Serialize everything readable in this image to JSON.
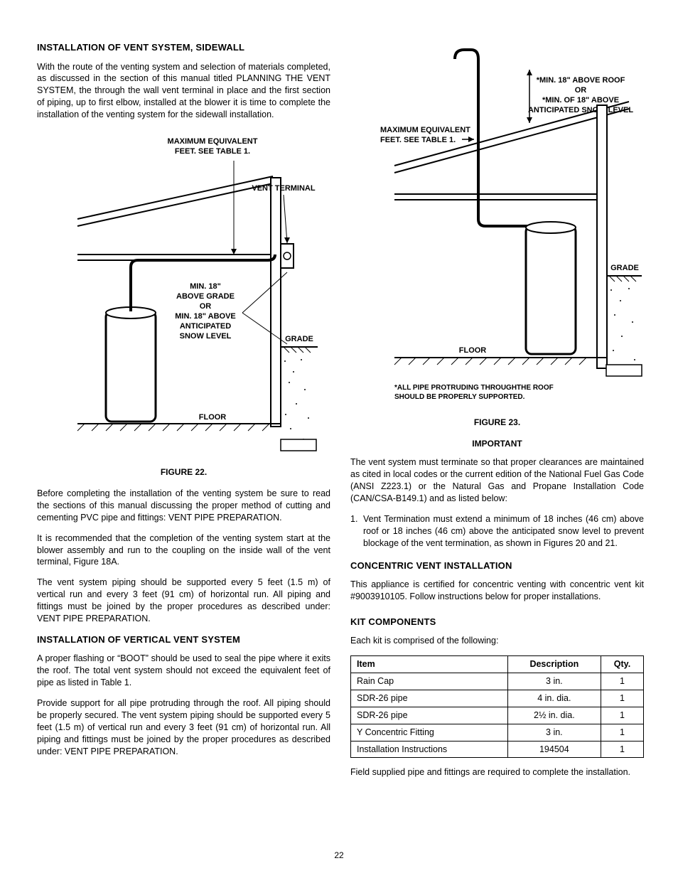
{
  "page_number": "22",
  "left": {
    "h_sidewall": "INSTALLATION OF VENT SYSTEM, SIDEWALL",
    "p_sidewall_1": "With the route of the venting system and selection of materials completed, as discussed in the section of this manual titled PLANNING THE VENT SYSTEM, the through the wall vent terminal in place and the first section of piping, up to first elbow, installed at the blower it is time to complete the installation of the venting system for the sidewall installation.",
    "fig22_caption": "FIGURE 22.",
    "fig22_labels": {
      "max_equiv_1": "MAXIMUM EQUIVALENT",
      "max_equiv_2": "FEET. SEE TABLE 1.",
      "vent_terminal": "VENT TERMINAL",
      "min18_l1": "MIN. 18\"",
      "min18_l2": "ABOVE GRADE",
      "min18_l3": "OR",
      "min18_l4": "MIN. 18\" ABOVE",
      "min18_l5": "ANTICIPATED",
      "min18_l6": "SNOW LEVEL",
      "grade": "GRADE",
      "floor": "FLOOR"
    },
    "p_before": "Before completing the installation of the venting system be sure to read the sections of this manual discussing the proper method of cutting and cementing PVC pipe and fittings: VENT PIPE PREPARATION.",
    "p_recommend": "It is recommended that the completion of the venting system start at the blower assembly and run to the coupling on the inside wall of the vent terminal, Figure 18A.",
    "p_support": "The vent system piping should be supported every 5 feet (1.5 m) of vertical run and every 3 feet (91 cm) of horizontal run. All piping and fittings must be joined by the proper procedures as described under: VENT PIPE PREPARATION.",
    "h_vertical": "INSTALLATION OF VERTICAL VENT SYSTEM",
    "p_vertical_1": "A proper flashing or “BOOT” should be used to seal the pipe where it exits the roof. The total vent system should not exceed the  equivalent feet of pipe as listed in Table 1.",
    "p_vertical_2": "Provide support for all pipe protruding through the roof. All piping should be properly secured. The vent system piping should be supported every 5 feet (1.5 m) of vertical run and every 3 feet (91 cm) of horizontal run. All piping and fittings must be joined by the proper procedures as described under: VENT PIPE PREPARATION."
  },
  "right": {
    "fig23_labels": {
      "min18_l1": "*MIN. 18\" ABOVE ROOF",
      "min18_l2": "OR",
      "min18_l3": "*MIN. OF 18\" ABOVE",
      "min18_l4": "ANTICIPATED SNOW LEVEL",
      "max_equiv_1": "MAXIMUM EQUIVALENT",
      "max_equiv_2": "FEET. SEE TABLE 1.",
      "grade": "GRADE",
      "floor": "FLOOR",
      "note_1": "*ALL PIPE PROTRUDING THROUGHTHE ROOF",
      "note_2": "SHOULD BE PROPERLY SUPPORTED."
    },
    "fig23_caption": "FIGURE 23.",
    "important": "IMPORTANT",
    "p_important": "The vent system must terminate so that proper clearances are maintained as cited in local codes or the current edition of the National Fuel Gas Code (ANSI Z223.1) or the Natural Gas and Propane Installation Code (CAN/CSA-B149.1) and as listed below:",
    "li_1": "Vent Termination must extend a minimum of 18 inches (46 cm) above roof or 18 inches (46 cm) above the anticipated snow level to prevent blockage of the vent termination, as shown in Figures 20 and 21.",
    "h_concentric": "CONCENTRIC VENT INSTALLATION",
    "p_concentric": "This appliance is certified for concentric venting with concentric vent kit #9003910105. Follow instructions below for proper installations.",
    "h_kit": "KIT COMPONENTS",
    "p_kit_intro": "Each kit is comprised of the following:",
    "table": {
      "headers": [
        "Item",
        "Description",
        "Qty."
      ],
      "rows": [
        [
          "Rain Cap",
          "3 in.",
          "1"
        ],
        [
          "SDR-26 pipe",
          "4 in. dia.",
          "1"
        ],
        [
          "SDR-26 pipe",
          "2½ in. dia.",
          "1"
        ],
        [
          "Y Concentric Fitting",
          "3 in.",
          "1"
        ],
        [
          "Installation Instructions",
          "194504",
          "1"
        ]
      ]
    },
    "p_field": "Field supplied pipe and fittings are required to complete the installation."
  }
}
